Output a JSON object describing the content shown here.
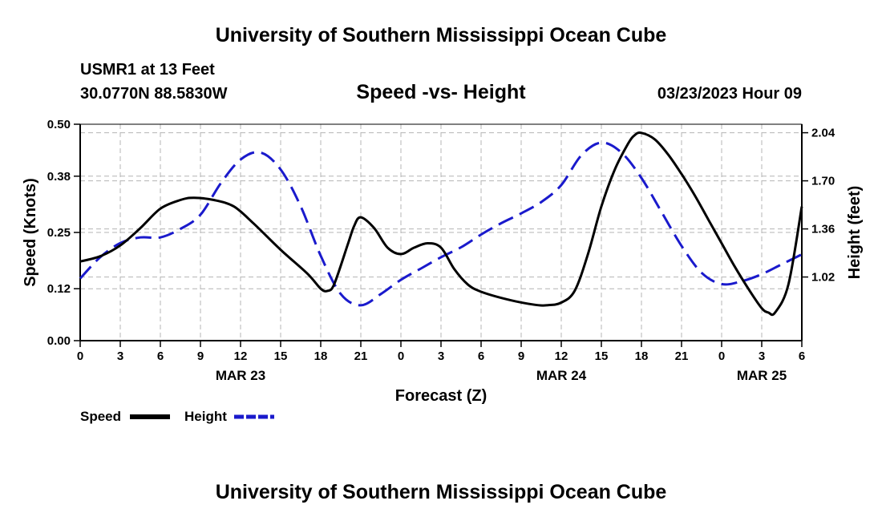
{
  "page": {
    "title_top": "University of Southern Mississippi Ocean Cube",
    "title_bottom": "University of Southern Mississippi Ocean Cube",
    "station": "USMR1 at 13 Feet",
    "coords": "30.0770N  88.5830W",
    "datetime": "03/23/2023 Hour 09"
  },
  "legend": {
    "speed_label": "Speed",
    "height_label": "Height"
  },
  "colors": {
    "speed": "#000000",
    "height": "#1a1acc",
    "grid": "#b4b4b4"
  },
  "chart_data": {
    "type": "line",
    "title": "Speed -vs- Height",
    "xlabel": "Forecast (Z)",
    "ylabel_left": "Speed (Knots)",
    "ylabel_right": "Height (feet)",
    "x_range": [
      0,
      54
    ],
    "x_ticks": [
      0,
      3,
      6,
      9,
      12,
      15,
      18,
      21,
      24,
      27,
      30,
      33,
      36,
      39,
      42,
      45,
      48,
      51,
      54
    ],
    "x_tick_labels": [
      "0",
      "3",
      "6",
      "9",
      "12",
      "15",
      "18",
      "21",
      "0",
      "3",
      "6",
      "9",
      "12",
      "15",
      "18",
      "21",
      "0",
      "3",
      "6"
    ],
    "date_labels": [
      {
        "x": 12,
        "label": "MAR 23"
      },
      {
        "x": 36,
        "label": "MAR 24"
      },
      {
        "x": 51,
        "label": "MAR 25"
      }
    ],
    "y_left_range": [
      0,
      0.5
    ],
    "y_left_ticks": [
      0.0,
      0.12,
      0.25,
      0.38,
      0.5
    ],
    "y_left_tick_labels": [
      "0.00",
      "0.12",
      "0.25",
      "0.38",
      "0.50"
    ],
    "y_right_range": [
      0.57,
      2.1
    ],
    "y_right_ticks": [
      1.02,
      1.36,
      1.7,
      2.04
    ],
    "y_right_tick_labels": [
      "1.02",
      "1.36",
      "1.70",
      "2.04"
    ],
    "grid": true,
    "legend_position": "bottom-left",
    "series": [
      {
        "name": "Speed",
        "axis": "left",
        "style": "solid",
        "x": [
          0,
          1.5,
          3,
          4.5,
          6,
          7.5,
          8.5,
          10,
          11.5,
          13,
          15,
          17,
          18,
          18.5,
          19,
          20,
          20.5,
          21,
          22,
          23,
          24,
          25,
          26,
          27,
          28,
          29,
          30,
          32,
          34,
          35,
          36,
          37,
          38,
          39,
          40,
          41,
          41.5,
          42,
          43,
          44,
          45,
          46,
          47,
          48,
          49,
          50,
          51,
          51.5,
          52,
          53,
          54
        ],
        "values": [
          0.183,
          0.195,
          0.22,
          0.26,
          0.305,
          0.325,
          0.33,
          0.325,
          0.31,
          0.27,
          0.21,
          0.155,
          0.12,
          0.115,
          0.13,
          0.22,
          0.265,
          0.285,
          0.26,
          0.215,
          0.2,
          0.215,
          0.225,
          0.215,
          0.165,
          0.13,
          0.113,
          0.095,
          0.083,
          0.082,
          0.088,
          0.115,
          0.2,
          0.31,
          0.395,
          0.455,
          0.475,
          0.48,
          0.465,
          0.43,
          0.385,
          0.335,
          0.28,
          0.225,
          0.17,
          0.12,
          0.075,
          0.065,
          0.065,
          0.13,
          0.31
        ]
      },
      {
        "name": "Height",
        "axis": "right",
        "style": "dashed",
        "x": [
          0,
          1.5,
          3,
          4.5,
          6,
          7.5,
          9,
          10.5,
          12,
          13.5,
          15,
          16.5,
          18,
          19.5,
          21,
          22.5,
          24,
          25.5,
          27,
          28.5,
          30,
          31.5,
          33,
          34.5,
          36,
          37.5,
          39,
          40.5,
          42,
          43.5,
          45,
          46.5,
          48,
          49.5,
          51,
          52.5,
          54
        ],
        "values": [
          1.01,
          1.16,
          1.26,
          1.3,
          1.3,
          1.36,
          1.46,
          1.68,
          1.85,
          1.9,
          1.78,
          1.52,
          1.17,
          0.9,
          0.82,
          0.9,
          1.0,
          1.08,
          1.16,
          1.23,
          1.32,
          1.4,
          1.47,
          1.55,
          1.67,
          1.88,
          1.97,
          1.9,
          1.72,
          1.48,
          1.24,
          1.05,
          0.97,
          0.99,
          1.04,
          1.11,
          1.18
        ]
      }
    ]
  }
}
